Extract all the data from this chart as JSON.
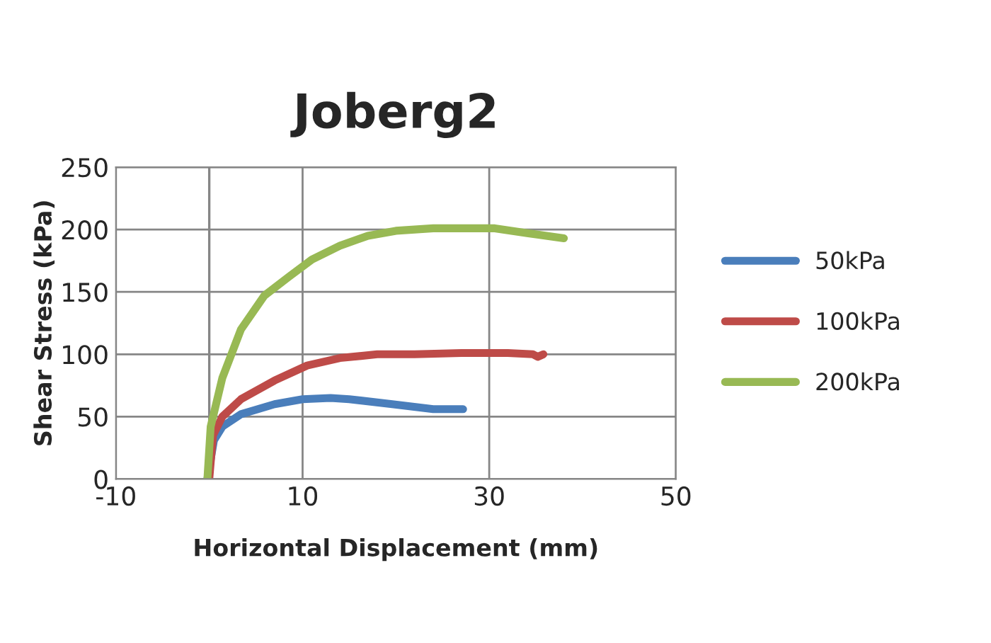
{
  "chart_data": {
    "type": "line",
    "title": "Joberg2",
    "xlabel": "Horizontal Displacement (mm)",
    "ylabel": "Shear Stress (kPa)",
    "xlim": [
      -10,
      50
    ],
    "xticks": [
      -10,
      10,
      30,
      50
    ],
    "ylim": [
      0,
      250
    ],
    "yticks": [
      0,
      50,
      100,
      150,
      200,
      250
    ],
    "grid": true,
    "legend": "right",
    "marker": "none",
    "line_style": "solid",
    "ref_lines": [
      {
        "axis": "x",
        "value": 0,
        "color": "#868686"
      }
    ],
    "series": [
      {
        "name": "50kPa",
        "color": "#4a7ebb",
        "x": [
          -0.2,
          0.5,
          1.4,
          3.4,
          7,
          10,
          13,
          15,
          19.6,
          24,
          27.2
        ],
        "values": [
          0,
          31,
          42,
          52,
          60,
          64,
          65,
          64,
          60,
          56,
          56
        ]
      },
      {
        "name": "100kPa",
        "color": "#be4b48",
        "x": [
          0,
          0.4,
          1.4,
          3.4,
          7,
          10.5,
          14,
          18,
          22,
          27,
          32,
          34.7,
          35.2,
          35.8
        ],
        "values": [
          0,
          35,
          50,
          64,
          79,
          91,
          97,
          100,
          100,
          101,
          101,
          100,
          98,
          100
        ]
      },
      {
        "name": "200kPa",
        "color": "#98b954",
        "x": [
          -0.2,
          0.15,
          1.4,
          3.4,
          5.9,
          8.5,
          11,
          14,
          17,
          20,
          24,
          27,
          30.6,
          34.2,
          38
        ],
        "values": [
          0,
          42,
          81,
          120,
          147,
          162,
          176,
          187,
          195,
          199,
          201,
          201,
          201,
          197,
          193
        ]
      }
    ]
  }
}
